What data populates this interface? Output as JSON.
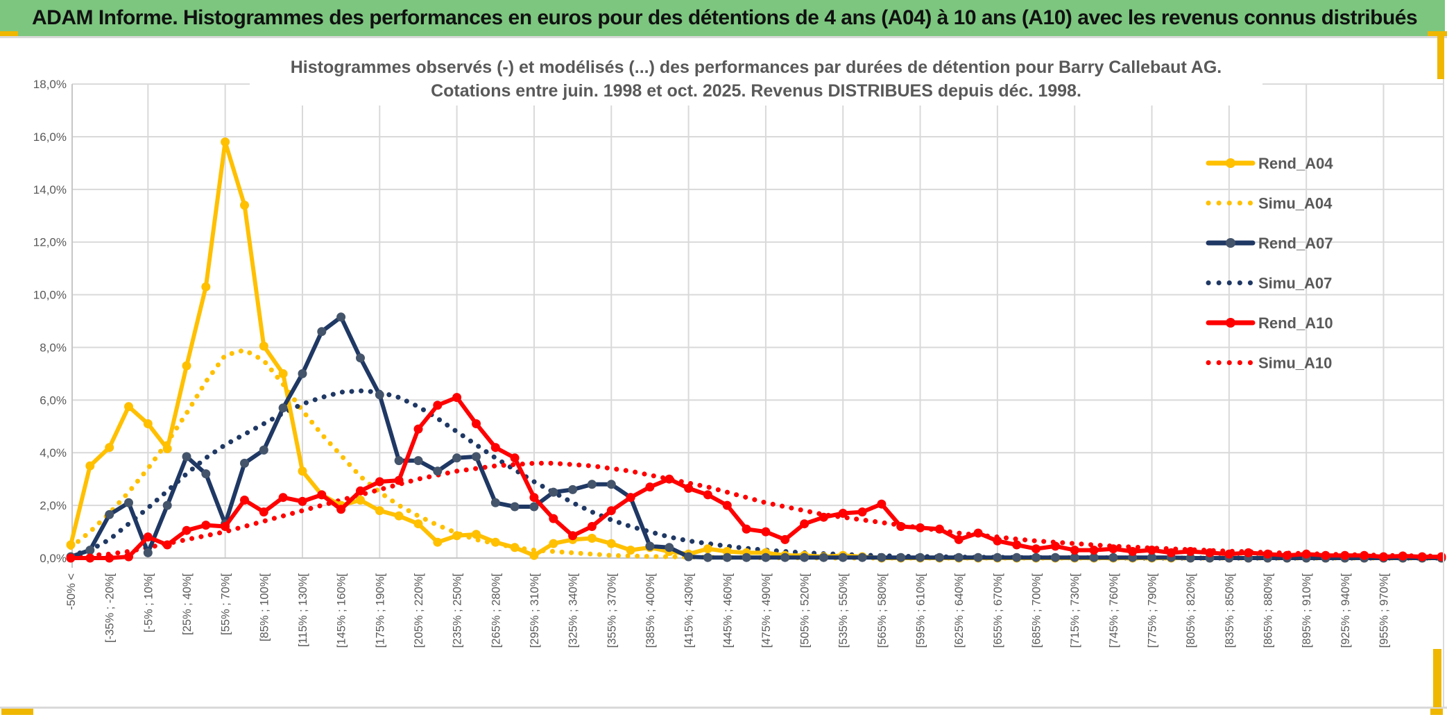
{
  "header": {
    "title": "ADAM Informe. Histogrammes des performances en euros pour des détentions de 4 ans (A04) à 10 ans (A10) avec les revenus connus distribués"
  },
  "colors": {
    "header_green": "#7cc67f",
    "accent_gold": "#efb700",
    "grid_gray": "#d9d9d9",
    "axis_text_gray": "#595959",
    "title_gray": "#595959",
    "series_gold": "#FFC000",
    "series_navy": "#1F3864",
    "series_navy_marker": "#44546A",
    "series_red": "#FE0000"
  },
  "chart_data": {
    "type": "line",
    "title_line1": "Histogrammes observés (-) et modélisés (...) des performances par durées de détention pour Barry Callebaut AG.",
    "title_line2": "Cotations entre juin. 1998 et oct. 2025. Revenus DISTRIBUES depuis déc. 1998.",
    "ylabel": "",
    "xlabel": "",
    "ylim": [
      0,
      18
    ],
    "grid": true,
    "legend_position": "right",
    "ytick_labels": [
      "0,0%",
      "2,0%",
      "4,0%",
      "6,0%",
      "8,0%",
      "10,0%",
      "12,0%",
      "14,0%",
      "16,0%",
      "18,0%"
    ],
    "n_points": 72,
    "label_every_n_points": 2,
    "gridline_every_n_points": 4,
    "categories": [
      "-50% <",
      "[-35% ; -20%[",
      "[-5% ; 10%[",
      "[25% ; 40%[",
      "[55% ; 70%[",
      "[85% ; 100%[",
      "[115% ; 130%[",
      "[145% ; 160%[",
      "[175% ; 190%[",
      "[205% ; 220%[",
      "[235% ; 250%[",
      "[265% ; 280%[",
      "[295% ; 310%[",
      "[325% ; 340%[",
      "[355% ; 370%[",
      "[385% ; 400%[",
      "[415% ; 430%[",
      "[445% ; 460%[",
      "[475% ; 490%[",
      "[505% ; 520%[",
      "[535% ; 550%[",
      "[565% ; 580%[",
      "[595% ; 610%[",
      "[625% ; 640%[",
      "[655% ; 670%[",
      "[685% ; 700%[",
      "[715% ; 730%[",
      "[745% ; 760%[",
      "[775% ; 790%[",
      "[805% ; 820%[",
      "[835% ; 850%[",
      "[865% ; 880%[",
      "[895% ; 910%[",
      "[925% ; 940%[",
      "[955% ; 970%["
    ],
    "series": [
      {
        "name": "Rend_A04",
        "style": "solid",
        "color": "#FFC000",
        "marker_color": "#FFC000",
        "values": [
          0.5,
          3.5,
          4.2,
          5.75,
          5.1,
          4.15,
          7.3,
          10.3,
          15.8,
          13.4,
          8.05,
          7.0,
          3.3,
          2.4,
          2.0,
          2.2,
          1.8,
          1.6,
          1.3,
          0.6,
          0.85,
          0.9,
          0.6,
          0.4,
          0.1,
          0.55,
          0.7,
          0.75,
          0.55,
          0.3,
          0.4,
          0.25,
          0.15,
          0.35,
          0.25,
          0.2,
          0.2,
          0.1,
          0.1,
          0.05,
          0.1,
          0.05,
          0,
          0,
          0,
          0,
          0,
          0,
          0,
          0,
          0,
          0,
          0,
          0,
          0,
          0,
          0,
          0,
          0,
          0,
          0,
          0,
          0,
          0,
          0,
          0,
          0,
          0,
          0,
          0,
          0,
          0
        ]
      },
      {
        "name": "Simu_A04",
        "style": "dotted",
        "color": "#FFC000",
        "marker_color": "#FFC000",
        "values": [
          0.4,
          1.0,
          1.7,
          2.5,
          3.4,
          4.4,
          5.5,
          6.7,
          7.7,
          7.9,
          7.5,
          6.6,
          5.6,
          4.7,
          3.9,
          3.1,
          2.5,
          2.0,
          1.6,
          1.25,
          0.95,
          0.7,
          0.55,
          0.4,
          0.3,
          0.25,
          0.2,
          0.15,
          0.1,
          0.08,
          0.06,
          0.05,
          0.04,
          0.03,
          0.02,
          0.02,
          0.01,
          0.01,
          0.01,
          0,
          0,
          0,
          0,
          0,
          0,
          0,
          0,
          0,
          0,
          0,
          0,
          0,
          0,
          0,
          0,
          0,
          0,
          0,
          0,
          0,
          0,
          0,
          0,
          0,
          0,
          0,
          0,
          0,
          0,
          0,
          0,
          0
        ]
      },
      {
        "name": "Rend_A07",
        "style": "solid",
        "color": "#1F3864",
        "marker_color": "#44546A",
        "values": [
          0.05,
          0.3,
          1.65,
          2.1,
          0.2,
          2.0,
          3.85,
          3.2,
          1.3,
          3.6,
          4.1,
          5.7,
          7.0,
          8.6,
          9.15,
          7.6,
          6.2,
          3.7,
          3.7,
          3.3,
          3.8,
          3.85,
          2.1,
          1.95,
          1.95,
          2.5,
          2.6,
          2.8,
          2.8,
          2.3,
          0.45,
          0.4,
          0.05,
          0.02,
          0.02,
          0.02,
          0.02,
          0.02,
          0.02,
          0.02,
          0.02,
          0.02,
          0.02,
          0.02,
          0.02,
          0.02,
          0.02,
          0.02,
          0.02,
          0.02,
          0.02,
          0.02,
          0.02,
          0.02,
          0.02,
          0.02,
          0.02,
          0.02,
          0,
          0,
          0,
          0,
          0,
          0,
          0,
          0,
          0,
          0,
          0,
          0,
          0,
          0
        ]
      },
      {
        "name": "Simu_A07",
        "style": "dotted",
        "color": "#1F3864",
        "marker_color": "#1F3864",
        "values": [
          0.1,
          0.3,
          0.7,
          1.3,
          1.9,
          2.55,
          3.2,
          3.8,
          4.3,
          4.7,
          5.1,
          5.5,
          5.85,
          6.1,
          6.3,
          6.35,
          6.3,
          6.1,
          5.75,
          5.3,
          4.8,
          4.3,
          3.8,
          3.35,
          2.9,
          2.5,
          2.1,
          1.75,
          1.45,
          1.2,
          1.0,
          0.8,
          0.65,
          0.55,
          0.45,
          0.37,
          0.3,
          0.25,
          0.2,
          0.17,
          0.14,
          0.11,
          0.09,
          0.07,
          0.06,
          0.05,
          0.04,
          0.03,
          0.03,
          0.02,
          0.02,
          0.01,
          0.01,
          0.01,
          0.01,
          0,
          0,
          0,
          0,
          0,
          0,
          0,
          0,
          0,
          0,
          0,
          0,
          0,
          0,
          0,
          0,
          0
        ]
      },
      {
        "name": "Rend_A10",
        "style": "solid",
        "color": "#FE0000",
        "marker_color": "#FE0000",
        "values": [
          0,
          0,
          0,
          0.05,
          0.8,
          0.5,
          1.05,
          1.25,
          1.2,
          2.2,
          1.75,
          2.3,
          2.15,
          2.4,
          1.85,
          2.55,
          2.9,
          2.95,
          4.9,
          5.8,
          6.1,
          5.1,
          4.2,
          3.8,
          2.3,
          1.5,
          0.85,
          1.2,
          1.8,
          2.3,
          2.7,
          3.0,
          2.65,
          2.4,
          2.0,
          1.1,
          1.0,
          0.7,
          1.3,
          1.55,
          1.7,
          1.75,
          2.05,
          1.2,
          1.15,
          1.1,
          0.7,
          0.95,
          0.65,
          0.5,
          0.35,
          0.45,
          0.3,
          0.3,
          0.35,
          0.25,
          0.3,
          0.2,
          0.25,
          0.2,
          0.15,
          0.2,
          0.15,
          0.1,
          0.15,
          0.1,
          0.1,
          0.1,
          0.05,
          0.08,
          0.05,
          0.05
        ]
      },
      {
        "name": "Simu_A10",
        "style": "dotted",
        "color": "#FE0000",
        "marker_color": "#FE0000",
        "values": [
          0.05,
          0.1,
          0.15,
          0.25,
          0.4,
          0.55,
          0.7,
          0.85,
          1.0,
          1.2,
          1.4,
          1.6,
          1.8,
          2.0,
          2.2,
          2.4,
          2.6,
          2.8,
          3.0,
          3.15,
          3.3,
          3.4,
          3.5,
          3.55,
          3.6,
          3.6,
          3.55,
          3.5,
          3.4,
          3.3,
          3.15,
          3.0,
          2.85,
          2.7,
          2.5,
          2.3,
          2.1,
          1.95,
          1.8,
          1.65,
          1.55,
          1.45,
          1.35,
          1.25,
          1.15,
          1.05,
          0.95,
          0.87,
          0.8,
          0.72,
          0.65,
          0.6,
          0.55,
          0.5,
          0.45,
          0.42,
          0.38,
          0.35,
          0.32,
          0.29,
          0.26,
          0.24,
          0.21,
          0.19,
          0.17,
          0.15,
          0.13,
          0.12,
          0.1,
          0.09,
          0.08,
          0.07
        ]
      }
    ],
    "legend": [
      "Rend_A04",
      "Simu_A04",
      "Rend_A07",
      "Simu_A07",
      "Rend_A10",
      "Simu_A10"
    ]
  }
}
